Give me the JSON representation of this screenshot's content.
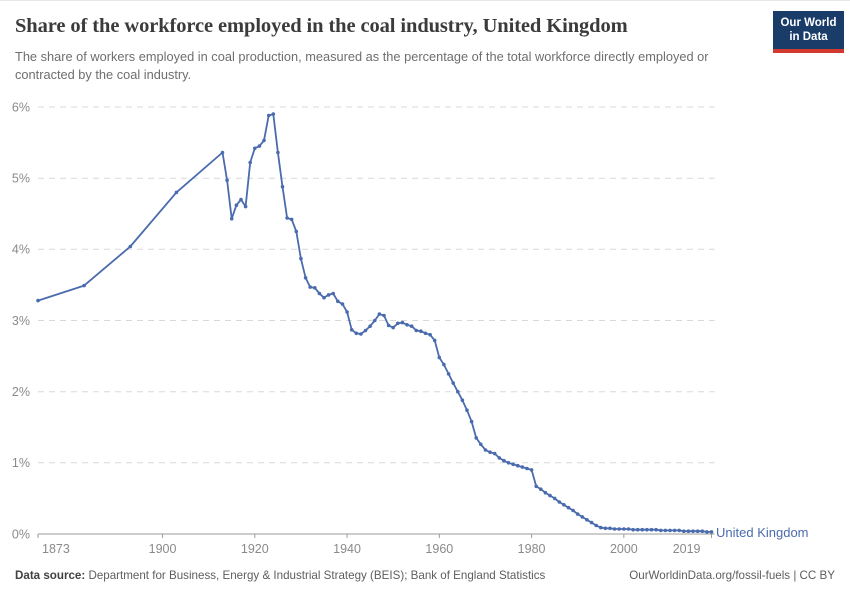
{
  "header": {
    "title": "Share of the workforce employed in the coal industry, United Kingdom",
    "subtitle": "The share of workers employed in coal production, measured as the percentage of the total workforce directly employed or contracted by the coal industry.",
    "logo": {
      "line1": "Our World",
      "line2": "in Data",
      "bg_color": "#1a3c69",
      "stripe_color": "#d23a2f"
    }
  },
  "footer": {
    "source_label": "Data source:",
    "source_text": " Department for Business, Energy & Industrial Strategy (BEIS); Bank of England Statistics",
    "link_text": "OurWorldinData.org/fossil-fuels | CC BY"
  },
  "colors": {
    "line": "#4a6bad",
    "entity_label": "#4a6bad",
    "grid": "#d8d8d8",
    "axis": "#9b9b9b",
    "axis_text": "#8a8a8a"
  },
  "chart_data": {
    "type": "line",
    "title": "Share of the workforce employed in the coal industry, United Kingdom",
    "xlabel": "",
    "ylabel": "",
    "xlim": [
      1873,
      2019
    ],
    "ylim": [
      0,
      6
    ],
    "x_ticks": [
      1873,
      1900,
      1920,
      1940,
      1960,
      1980,
      2000,
      2019
    ],
    "y_ticks": [
      0,
      1,
      2,
      3,
      4,
      5,
      6
    ],
    "y_suffix": "%",
    "grid": "horizontal-dashed",
    "legend_position": "end-of-line",
    "entity_label": "United Kingdom",
    "series": [
      {
        "name": "United Kingdom",
        "color": "#4a6bad",
        "points": [
          [
            1873,
            3.28
          ],
          [
            1883,
            3.49
          ],
          [
            1893,
            4.04
          ],
          [
            1903,
            4.8
          ],
          [
            1913,
            5.36
          ],
          [
            1914,
            4.97
          ],
          [
            1915,
            4.43
          ],
          [
            1916,
            4.62
          ],
          [
            1917,
            4.7
          ],
          [
            1918,
            4.6
          ],
          [
            1919,
            5.22
          ],
          [
            1920,
            5.42
          ],
          [
            1921,
            5.45
          ],
          [
            1922,
            5.53
          ],
          [
            1923,
            5.88
          ],
          [
            1924,
            5.9
          ],
          [
            1925,
            5.36
          ],
          [
            1926,
            4.88
          ],
          [
            1927,
            4.44
          ],
          [
            1928,
            4.42
          ],
          [
            1929,
            4.25
          ],
          [
            1930,
            3.87
          ],
          [
            1931,
            3.6
          ],
          [
            1932,
            3.47
          ],
          [
            1933,
            3.46
          ],
          [
            1934,
            3.38
          ],
          [
            1935,
            3.32
          ],
          [
            1936,
            3.36
          ],
          [
            1937,
            3.38
          ],
          [
            1938,
            3.27
          ],
          [
            1939,
            3.23
          ],
          [
            1940,
            3.12
          ],
          [
            1941,
            2.87
          ],
          [
            1942,
            2.82
          ],
          [
            1943,
            2.81
          ],
          [
            1944,
            2.86
          ],
          [
            1945,
            2.92
          ],
          [
            1946,
            3.0
          ],
          [
            1947,
            3.09
          ],
          [
            1948,
            3.07
          ],
          [
            1949,
            2.93
          ],
          [
            1950,
            2.9
          ],
          [
            1951,
            2.96
          ],
          [
            1952,
            2.97
          ],
          [
            1953,
            2.94
          ],
          [
            1954,
            2.92
          ],
          [
            1955,
            2.86
          ],
          [
            1956,
            2.85
          ],
          [
            1957,
            2.82
          ],
          [
            1958,
            2.8
          ],
          [
            1959,
            2.72
          ],
          [
            1960,
            2.48
          ],
          [
            1961,
            2.38
          ],
          [
            1962,
            2.25
          ],
          [
            1963,
            2.12
          ],
          [
            1964,
            2.0
          ],
          [
            1965,
            1.88
          ],
          [
            1966,
            1.74
          ],
          [
            1967,
            1.58
          ],
          [
            1968,
            1.35
          ],
          [
            1969,
            1.26
          ],
          [
            1970,
            1.18
          ],
          [
            1971,
            1.15
          ],
          [
            1972,
            1.13
          ],
          [
            1973,
            1.07
          ],
          [
            1974,
            1.03
          ],
          [
            1975,
            1.0
          ],
          [
            1976,
            0.98
          ],
          [
            1977,
            0.96
          ],
          [
            1978,
            0.94
          ],
          [
            1979,
            0.92
          ],
          [
            1980,
            0.9
          ],
          [
            1981,
            0.67
          ],
          [
            1982,
            0.63
          ],
          [
            1983,
            0.58
          ],
          [
            1984,
            0.54
          ],
          [
            1985,
            0.5
          ],
          [
            1986,
            0.45
          ],
          [
            1987,
            0.41
          ],
          [
            1988,
            0.37
          ],
          [
            1989,
            0.33
          ],
          [
            1990,
            0.28
          ],
          [
            1991,
            0.24
          ],
          [
            1992,
            0.2
          ],
          [
            1993,
            0.16
          ],
          [
            1994,
            0.12
          ],
          [
            1995,
            0.09
          ],
          [
            1996,
            0.08
          ],
          [
            1997,
            0.08
          ],
          [
            1998,
            0.07
          ],
          [
            1999,
            0.07
          ],
          [
            2000,
            0.07
          ],
          [
            2001,
            0.07
          ],
          [
            2002,
            0.06
          ],
          [
            2003,
            0.06
          ],
          [
            2004,
            0.06
          ],
          [
            2005,
            0.06
          ],
          [
            2006,
            0.06
          ],
          [
            2007,
            0.06
          ],
          [
            2008,
            0.05
          ],
          [
            2009,
            0.05
          ],
          [
            2010,
            0.05
          ],
          [
            2011,
            0.05
          ],
          [
            2012,
            0.05
          ],
          [
            2013,
            0.04
          ],
          [
            2014,
            0.04
          ],
          [
            2015,
            0.04
          ],
          [
            2016,
            0.04
          ],
          [
            2017,
            0.04
          ],
          [
            2018,
            0.03
          ],
          [
            2019,
            0.03
          ]
        ]
      }
    ]
  }
}
